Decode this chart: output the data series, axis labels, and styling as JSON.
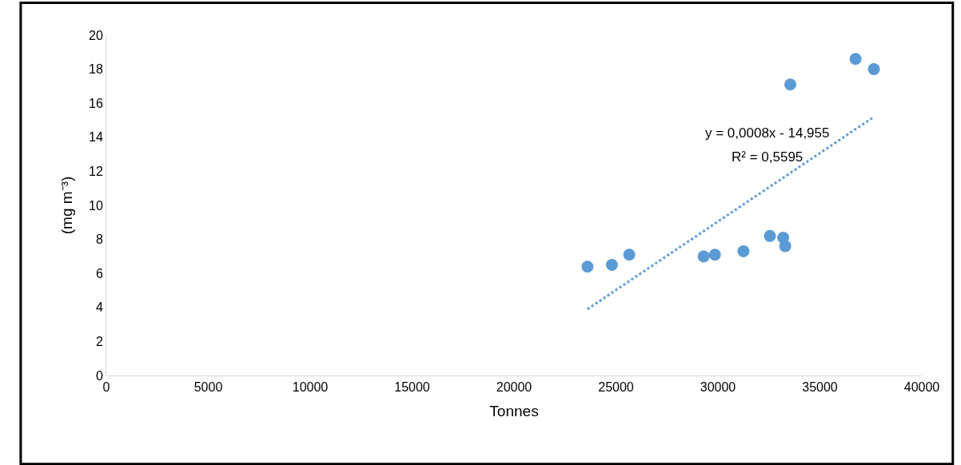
{
  "chart_data": {
    "type": "scatter",
    "xlabel": "Tonnes",
    "ylabel": "(mg m⁻³)",
    "xlim": [
      0,
      40000
    ],
    "xticks": [
      0,
      5000,
      10000,
      15000,
      20000,
      25000,
      30000,
      35000,
      40000
    ],
    "ylim": [
      0,
      20
    ],
    "yticks": [
      0,
      2,
      4,
      6,
      8,
      10,
      12,
      14,
      16,
      18,
      20
    ],
    "grid": false,
    "series": [
      {
        "color": "#5b9bd5",
        "marker": "circle",
        "x": [
          23600,
          24800,
          25650,
          29300,
          29850,
          31250,
          32550,
          33200,
          33300,
          33550,
          36750,
          37650
        ],
        "values": [
          6.4,
          6.5,
          7.1,
          7.0,
          7.1,
          7.3,
          8.2,
          8.1,
          7.6,
          17.1,
          18.6,
          18.0
        ]
      },
      {
        "type": "line",
        "color": "#5b9bd5",
        "line_style": "dotted",
        "marker": "none",
        "x": [
          23600,
          37650
        ],
        "values": [
          3.9,
          15.2
        ]
      }
    ],
    "annotations": [
      "y = 0,0008x - 14,955",
      "R² = 0,5595"
    ]
  }
}
